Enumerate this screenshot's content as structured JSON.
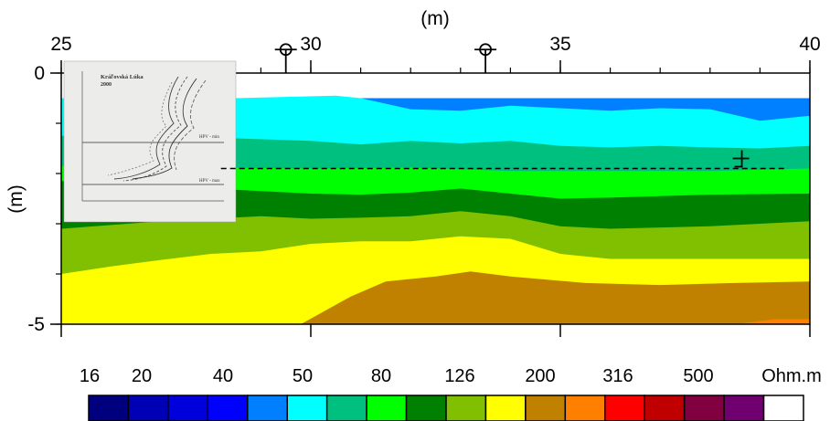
{
  "chart_data": {
    "type": "heatmap",
    "title": "",
    "xlabel": "(m)",
    "ylabel": "(m)",
    "xlim": [
      25,
      40
    ],
    "ylim": [
      -5,
      0
    ],
    "x_ticks": [
      {
        "value": 25,
        "label": "25"
      },
      {
        "value": 30,
        "label": "30"
      },
      {
        "value": 35,
        "label": "35"
      },
      {
        "value": 40,
        "label": "40"
      }
    ],
    "x_minor_step": 1,
    "y_ticks": [
      {
        "value": 0,
        "label": "0"
      },
      {
        "value": -5,
        "label": "-5"
      }
    ],
    "y_minor_step": 1,
    "x_axis_position": "top",
    "markers": [
      {
        "type": "borehole",
        "x": 29.5,
        "y": 0.25
      },
      {
        "type": "borehole",
        "x": 33.5,
        "y": 0.25
      },
      {
        "type": "water-level",
        "x": 38.6,
        "y": -1.7
      }
    ],
    "water_level_line": {
      "x_start": 28.2,
      "x_end": 39.5,
      "y": -1.9
    },
    "colorbar": {
      "unit": "Ohm.m",
      "labels": [
        "16",
        "20",
        "40",
        "50",
        "80",
        "126",
        "200",
        "316",
        "500"
      ],
      "colors": [
        "#00007f",
        "#0000b5",
        "#0000dd",
        "#0000ff",
        "#0080ff",
        "#00ffff",
        "#00c080",
        "#00ff00",
        "#008000",
        "#80c000",
        "#ffff00",
        "#c08000",
        "#ff8000",
        "#ff0000",
        "#c00000",
        "#800040",
        "#700070",
        "#ffffff"
      ]
    },
    "layers": [
      {
        "color": "#0080ff",
        "top": [
          [
            25,
            -0.5
          ],
          [
            40,
            -0.5
          ]
        ]
      },
      {
        "color": "#00ffff",
        "top": [
          [
            25,
            -0.5
          ],
          [
            28.5,
            -0.5
          ],
          [
            30.5,
            -0.45
          ],
          [
            31,
            -0.5
          ],
          [
            32,
            -0.72
          ],
          [
            33,
            -0.75
          ],
          [
            34,
            -0.65
          ],
          [
            35,
            -0.7
          ],
          [
            36,
            -0.75
          ],
          [
            37,
            -0.7
          ],
          [
            38,
            -0.72
          ],
          [
            39,
            -0.95
          ],
          [
            40,
            -0.85
          ]
        ]
      },
      {
        "color": "#00c080",
        "top": [
          [
            25,
            -1.25
          ],
          [
            28.5,
            -1.3
          ],
          [
            30,
            -1.35
          ],
          [
            31,
            -1.42
          ],
          [
            32,
            -1.35
          ],
          [
            33,
            -1.4
          ],
          [
            34,
            -1.35
          ],
          [
            35,
            -1.45
          ],
          [
            36,
            -1.48
          ],
          [
            37,
            -1.45
          ],
          [
            38,
            -1.48
          ],
          [
            39,
            -1.5
          ],
          [
            40,
            -1.45
          ]
        ]
      },
      {
        "color": "#00ff00",
        "top": [
          [
            25,
            -1.85
          ],
          [
            30,
            -1.9
          ],
          [
            32,
            -1.88
          ],
          [
            34,
            -1.95
          ],
          [
            36,
            -1.95
          ],
          [
            38,
            -1.95
          ],
          [
            40,
            -1.9
          ]
        ]
      },
      {
        "color": "#008000",
        "top": [
          [
            25,
            -2.15
          ],
          [
            28,
            -2.3
          ],
          [
            30,
            -2.4
          ],
          [
            31,
            -2.42
          ],
          [
            32,
            -2.38
          ],
          [
            33,
            -2.3
          ],
          [
            34,
            -2.4
          ],
          [
            35,
            -2.5
          ],
          [
            36,
            -2.48
          ],
          [
            38,
            -2.42
          ],
          [
            40,
            -2.4
          ]
        ]
      },
      {
        "color": "#80c000",
        "top": [
          [
            25,
            -3.1
          ],
          [
            27,
            -2.95
          ],
          [
            29,
            -2.85
          ],
          [
            30,
            -2.9
          ],
          [
            31,
            -2.88
          ],
          [
            32,
            -2.85
          ],
          [
            33,
            -2.75
          ],
          [
            34,
            -2.85
          ],
          [
            35,
            -3.05
          ],
          [
            36,
            -3.1
          ],
          [
            38,
            -3.05
          ],
          [
            40,
            -2.95
          ]
        ]
      },
      {
        "color": "#ffff00",
        "top": [
          [
            25,
            -4.0
          ],
          [
            26,
            -3.85
          ],
          [
            27,
            -3.72
          ],
          [
            28,
            -3.6
          ],
          [
            29,
            -3.55
          ],
          [
            30,
            -3.4
          ],
          [
            31,
            -3.35
          ],
          [
            32,
            -3.35
          ],
          [
            33,
            -3.25
          ],
          [
            34,
            -3.3
          ],
          [
            35,
            -3.6
          ],
          [
            36,
            -3.7
          ],
          [
            38,
            -3.7
          ],
          [
            40,
            -3.7
          ]
        ]
      },
      {
        "color": "#c08000",
        "top": [
          [
            29.8,
            -5
          ],
          [
            30.8,
            -4.45
          ],
          [
            31.5,
            -4.15
          ],
          [
            32.5,
            -4.05
          ],
          [
            33.2,
            -3.95
          ],
          [
            34,
            -4.05
          ],
          [
            35.5,
            -4.18
          ],
          [
            37,
            -4.22
          ],
          [
            38.5,
            -4.18
          ],
          [
            40,
            -4.15
          ]
        ]
      },
      {
        "color": "#ff8000",
        "top": [
          [
            38.5,
            -5
          ],
          [
            39.3,
            -4.9
          ],
          [
            40,
            -4.9
          ]
        ]
      }
    ],
    "inset": {
      "title": "Kráľovská Lúka",
      "subtitle": "2000",
      "labels": [
        "HPV - min",
        "HPV - max"
      ]
    }
  }
}
